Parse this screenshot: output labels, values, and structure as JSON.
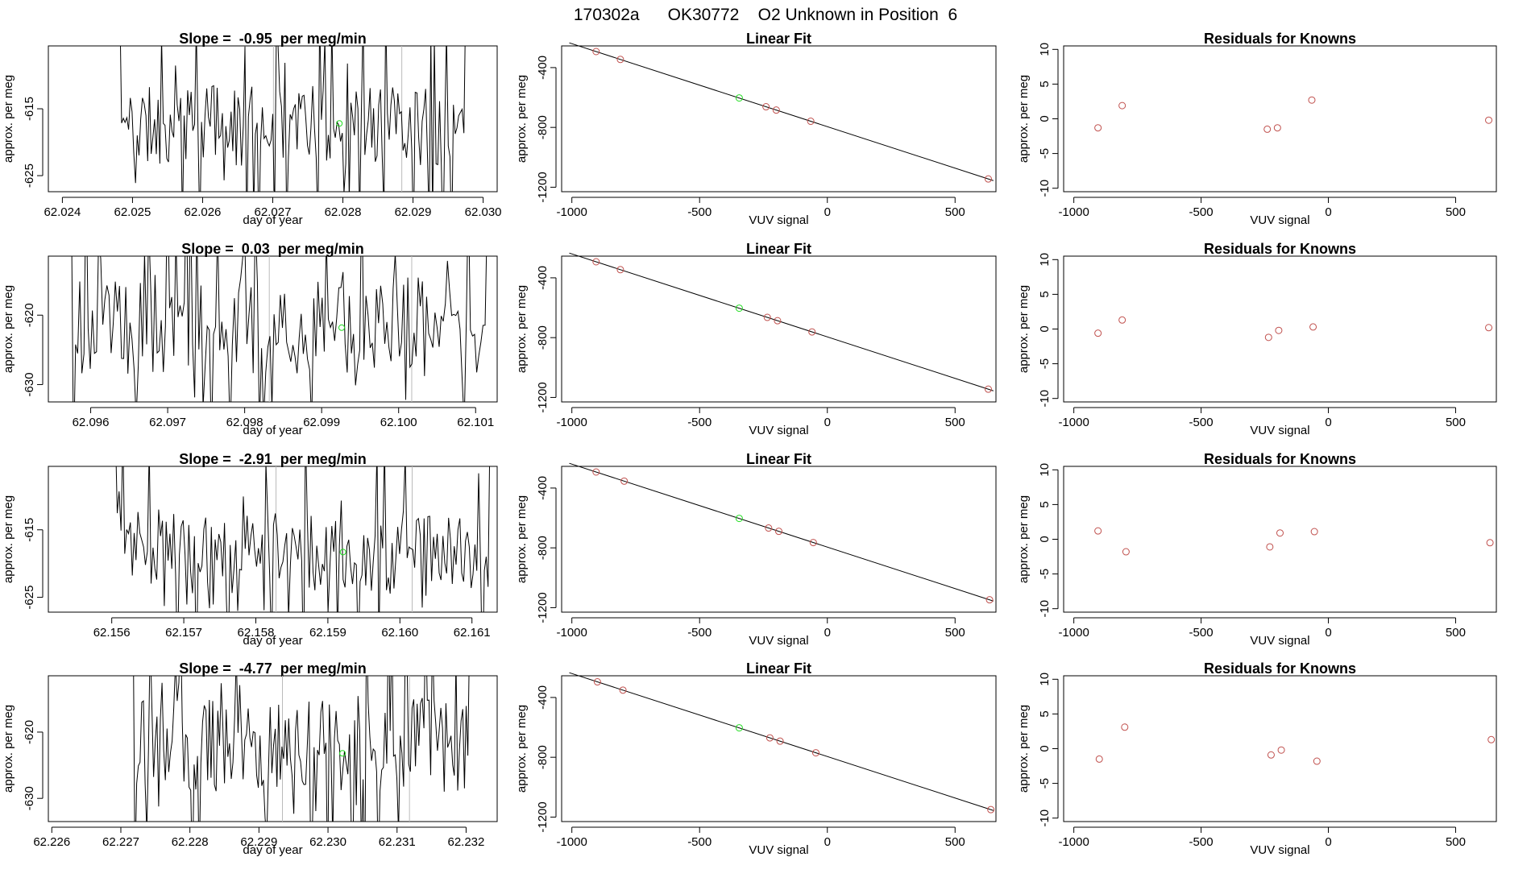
{
  "page_title": "170302a      OK30772    O2 Unknown in Position  6",
  "colors": {
    "trace": "#000000",
    "known": "#c0504d",
    "unknown": "#22dd22",
    "marker_line": "#bbbbbb"
  },
  "chart_data": [
    {
      "row": 1,
      "trace": {
        "type": "line",
        "title": "Slope =  -0.95  per meg/min",
        "xlabel": "day of year",
        "ylabel": "approx. per meg",
        "xlim": [
          62.0238,
          62.0302
        ],
        "ylim": [
          -627.4,
          -605.6
        ],
        "xticks": [
          62.024,
          62.025,
          62.026,
          62.027,
          62.028,
          62.029,
          62.03
        ],
        "xtick_labels": [
          "62.024",
          "62.025",
          "62.026",
          "62.027",
          "62.028",
          "62.029",
          "62.030"
        ],
        "yticks": [
          -615,
          -625
        ],
        "ytick_labels": [
          "-615",
          "-625"
        ],
        "x_start": 62.02482,
        "x_end": 62.02975,
        "n_points": 200,
        "seed": 11,
        "base": -617.5,
        "amp": 6,
        "vlines": [
          62.02701,
          62.02884
        ],
        "unknown_point": {
          "x": 62.02795,
          "y": -617.2
        }
      },
      "fit": {
        "type": "scatter",
        "title": "Linear Fit",
        "xlabel": "VUV signal",
        "ylabel": "approx. per meg",
        "xlim": [
          -1040,
          660
        ],
        "ylim": [
          -1230,
          -255
        ],
        "xticks": [
          -1000,
          -500,
          0,
          500
        ],
        "xtick_labels": [
          "-1000",
          "-500",
          "0",
          "500"
        ],
        "yticks": [
          -400,
          -800,
          -1200
        ],
        "ytick_labels": [
          "-400",
          "-800",
          "-1200"
        ],
        "slope": -0.555,
        "intercept": -795,
        "line_x": [
          -1010,
          650
        ],
        "knowns": [
          -905,
          -810,
          -240,
          -200,
          -65,
          630
        ],
        "unknown": {
          "x": -345,
          "y": -603
        }
      },
      "residuals": {
        "type": "scatter",
        "title": "Residuals for Knowns",
        "xlabel": "VUV signal",
        "ylabel": "approx. per meg",
        "xlim": [
          -1040,
          660
        ],
        "ylim": [
          -10.5,
          10.5
        ],
        "xticks": [
          -1000,
          -500,
          0,
          500
        ],
        "xtick_labels": [
          "-1000",
          "-500",
          "0",
          "500"
        ],
        "yticks": [
          10,
          5,
          0,
          -5,
          -10
        ],
        "ytick_labels": [
          "10",
          "5",
          "0",
          "-5",
          "-10"
        ],
        "points": [
          [
            -905,
            -1.3
          ],
          [
            -810,
            1.9
          ],
          [
            -240,
            -1.5
          ],
          [
            -200,
            -1.3
          ],
          [
            -65,
            2.7
          ],
          [
            630,
            -0.2
          ]
        ]
      }
    },
    {
      "row": 2,
      "trace": {
        "type": "line",
        "title": "Slope =  0.03  per meg/min",
        "xlabel": "day of year",
        "ylabel": "approx. per meg",
        "xlim": [
          62.09545,
          62.10128
        ],
        "ylim": [
          -632.5,
          -611.5
        ],
        "xticks": [
          62.096,
          62.097,
          62.098,
          62.099,
          62.1,
          62.101
        ],
        "xtick_labels": [
          "62.096",
          "62.097",
          "62.098",
          "62.099",
          "62.100",
          "62.101"
        ],
        "yticks": [
          -620,
          -630
        ],
        "ytick_labels": [
          "-620",
          "-630"
        ],
        "x_start": 62.09575,
        "x_end": 62.10115,
        "n_points": 200,
        "seed": 23,
        "base": -621.5,
        "amp": 7,
        "vlines": [
          62.09832,
          62.10017
        ],
        "unknown_point": {
          "x": 62.09926,
          "y": -621.8
        }
      },
      "fit": {
        "type": "scatter",
        "title": "Linear Fit",
        "xlabel": "VUV signal",
        "ylabel": "approx. per meg",
        "xlim": [
          -1040,
          660
        ],
        "ylim": [
          -1230,
          -255
        ],
        "xticks": [
          -1000,
          -500,
          0,
          500
        ],
        "xtick_labels": [
          "-1000",
          "-500",
          "0",
          "500"
        ],
        "yticks": [
          -400,
          -800,
          -1200
        ],
        "ytick_labels": [
          "-400",
          "-800",
          "-1200"
        ],
        "slope": -0.555,
        "intercept": -795,
        "line_x": [
          -1010,
          650
        ],
        "knowns": [
          -905,
          -810,
          -235,
          -195,
          -60,
          630
        ],
        "unknown": {
          "x": -345,
          "y": -603
        }
      },
      "residuals": {
        "type": "scatter",
        "title": "Residuals for Knowns",
        "xlabel": "VUV signal",
        "ylabel": "approx. per meg",
        "xlim": [
          -1040,
          660
        ],
        "ylim": [
          -10.5,
          10.5
        ],
        "xticks": [
          -1000,
          -500,
          0,
          500
        ],
        "xtick_labels": [
          "-1000",
          "-500",
          "0",
          "500"
        ],
        "yticks": [
          10,
          5,
          0,
          -5,
          -10
        ],
        "ytick_labels": [
          "10",
          "5",
          "0",
          "-5",
          "-10"
        ],
        "points": [
          [
            -905,
            -0.6
          ],
          [
            -810,
            1.3
          ],
          [
            -235,
            -1.2
          ],
          [
            -195,
            -0.2
          ],
          [
            -60,
            0.3
          ],
          [
            630,
            0.2
          ]
        ]
      }
    },
    {
      "row": 3,
      "trace": {
        "type": "line",
        "title": "Slope =  -2.91  per meg/min",
        "xlabel": "day of year",
        "ylabel": "approx. per meg",
        "xlim": [
          62.15512,
          62.16135
        ],
        "ylim": [
          -627.2,
          -605.6
        ],
        "xticks": [
          62.156,
          62.157,
          62.158,
          62.159,
          62.16,
          62.161
        ],
        "xtick_labels": [
          "62.156",
          "62.157",
          "62.158",
          "62.159",
          "62.160",
          "62.161"
        ],
        "yticks": [
          -615,
          -625
        ],
        "ytick_labels": [
          "-615",
          "-625"
        ],
        "x_start": 62.15605,
        "x_end": 62.16125,
        "n_points": 200,
        "seed": 37,
        "base": -618.5,
        "amp": 6,
        "vlines": [
          62.15828,
          62.16017
        ],
        "unknown_point": {
          "x": 62.15921,
          "y": -618.3
        }
      },
      "fit": {
        "type": "scatter",
        "title": "Linear Fit",
        "xlabel": "VUV signal",
        "ylabel": "approx. per meg",
        "xlim": [
          -1040,
          660
        ],
        "ylim": [
          -1230,
          -255
        ],
        "xticks": [
          -1000,
          -500,
          0,
          500
        ],
        "xtick_labels": [
          "-1000",
          "-500",
          "0",
          "500"
        ],
        "yticks": [
          -400,
          -800,
          -1200
        ],
        "ytick_labels": [
          "-400",
          "-800",
          "-1200"
        ],
        "slope": -0.555,
        "intercept": -795,
        "line_x": [
          -1010,
          650
        ],
        "knowns": [
          -905,
          -795,
          -230,
          -190,
          -55,
          635
        ],
        "unknown": {
          "x": -345,
          "y": -603
        }
      },
      "residuals": {
        "type": "scatter",
        "title": "Residuals for Knowns",
        "xlabel": "VUV signal",
        "ylabel": "approx. per meg",
        "xlim": [
          -1040,
          660
        ],
        "ylim": [
          -10.5,
          10.5
        ],
        "xticks": [
          -1000,
          -500,
          0,
          500
        ],
        "xtick_labels": [
          "-1000",
          "-500",
          "0",
          "500"
        ],
        "yticks": [
          10,
          5,
          0,
          -5,
          -10
        ],
        "ytick_labels": [
          "10",
          "5",
          "0",
          "-5",
          "-10"
        ],
        "points": [
          [
            -905,
            1.2
          ],
          [
            -795,
            -1.8
          ],
          [
            -230,
            -1.1
          ],
          [
            -190,
            0.9
          ],
          [
            -55,
            1.1
          ],
          [
            635,
            -0.5
          ]
        ]
      }
    },
    {
      "row": 4,
      "trace": {
        "type": "line",
        "title": "Slope =  -4.77  per meg/min",
        "xlabel": "day of year",
        "ylabel": "approx. per meg",
        "xlim": [
          62.22595,
          62.23245
        ],
        "ylim": [
          -633.5,
          -611.5
        ],
        "xticks": [
          62.226,
          62.227,
          62.228,
          62.229,
          62.23,
          62.231,
          62.232
        ],
        "xtick_labels": [
          "62.226",
          "62.227",
          "62.228",
          "62.229",
          "62.230",
          "62.231",
          "62.232"
        ],
        "yticks": [
          -620,
          -630
        ],
        "ytick_labels": [
          "-620",
          "-630"
        ],
        "x_start": 62.22718,
        "x_end": 62.23205,
        "n_points": 200,
        "seed": 51,
        "base": -622,
        "amp": 7,
        "vlines": [
          62.22934,
          62.23118
        ],
        "unknown_point": {
          "x": 62.23021,
          "y": -623.2
        }
      },
      "fit": {
        "type": "scatter",
        "title": "Linear Fit",
        "xlabel": "VUV signal",
        "ylabel": "approx. per meg",
        "xlim": [
          -1040,
          660
        ],
        "ylim": [
          -1230,
          -255
        ],
        "xticks": [
          -1000,
          -500,
          0,
          500
        ],
        "xtick_labels": [
          "-1000",
          "-500",
          "0",
          "500"
        ],
        "yticks": [
          -400,
          -800,
          -1200
        ],
        "ytick_labels": [
          "-400",
          "-800",
          "-1200"
        ],
        "slope": -0.555,
        "intercept": -795,
        "line_x": [
          -1010,
          650
        ],
        "knowns": [
          -900,
          -800,
          -225,
          -185,
          -45,
          640
        ],
        "unknown": {
          "x": -345,
          "y": -603
        }
      },
      "residuals": {
        "type": "scatter",
        "title": "Residuals for Knowns",
        "xlabel": "VUV signal",
        "ylabel": "approx. per meg",
        "xlim": [
          -1040,
          660
        ],
        "ylim": [
          -10.5,
          10.5
        ],
        "xticks": [
          -1000,
          -500,
          0,
          500
        ],
        "xtick_labels": [
          "-1000",
          "-500",
          "0",
          "500"
        ],
        "yticks": [
          10,
          5,
          0,
          -5,
          -10
        ],
        "ytick_labels": [
          "10",
          "5",
          "0",
          "-5",
          "-10"
        ],
        "points": [
          [
            -900,
            -1.5
          ],
          [
            -800,
            3.1
          ],
          [
            -225,
            -0.9
          ],
          [
            -185,
            -0.2
          ],
          [
            -45,
            -1.8
          ],
          [
            640,
            1.3
          ]
        ]
      }
    }
  ]
}
